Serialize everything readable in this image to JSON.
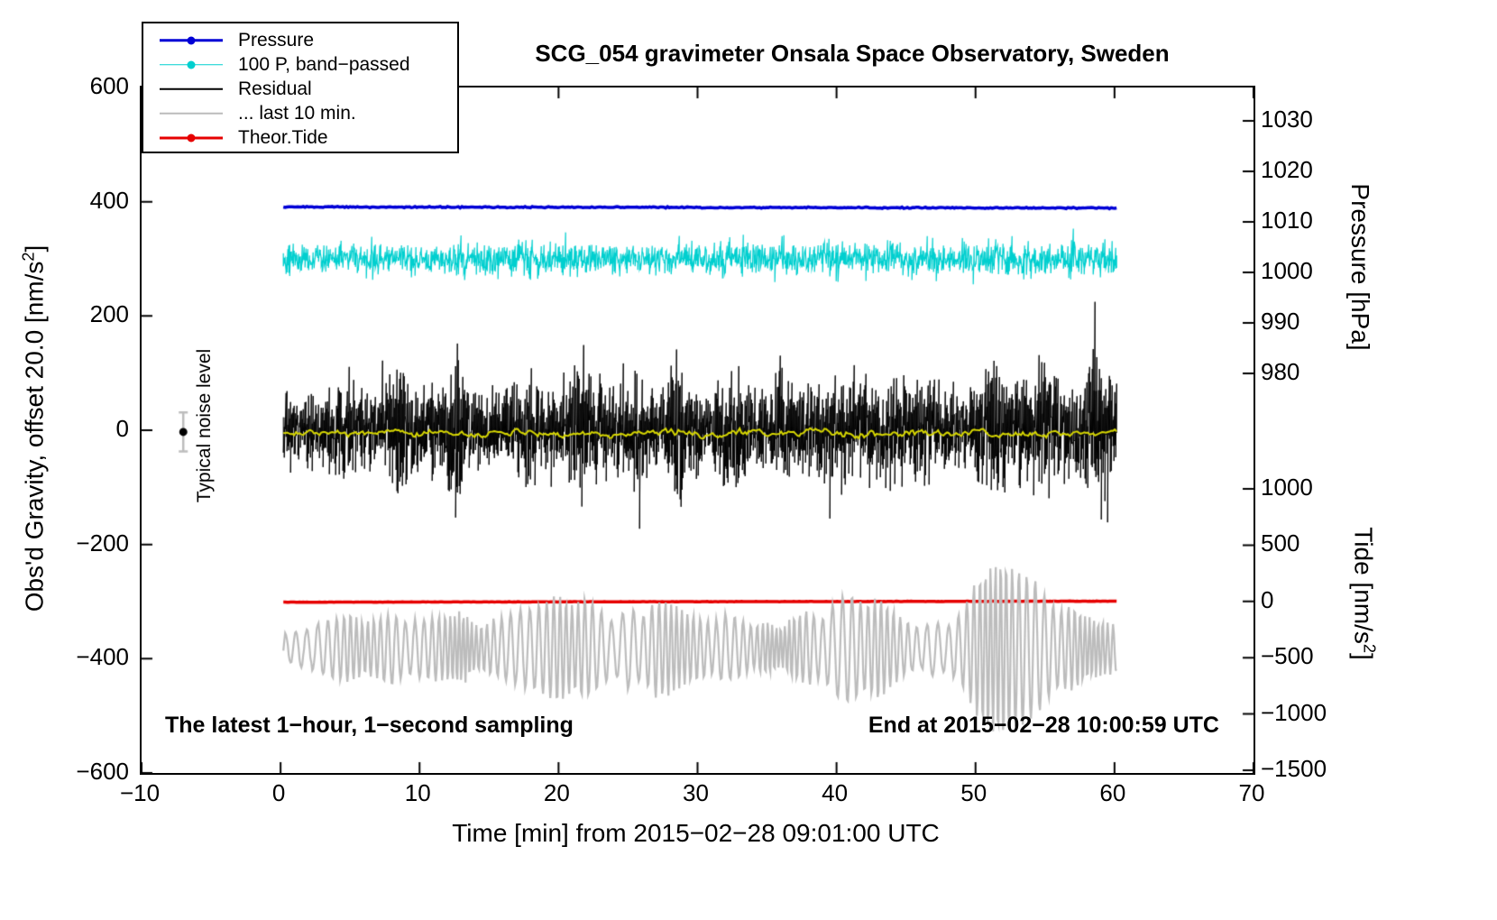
{
  "title": "SCG_054 gravimeter Onsala Space Observatory, Sweden",
  "legend": {
    "items": [
      {
        "label": "Pressure",
        "color": "#0000d6",
        "line_width": 3.5,
        "marker": true
      },
      {
        "label": "100 P, band−passed",
        "color": "#00cfcf",
        "line_width": 1.5,
        "marker": true
      },
      {
        "label": "Residual",
        "color": "#000000",
        "line_width": 2.5,
        "marker": false
      },
      {
        "label": "... last 10 min.",
        "color": "#bcbcbc",
        "line_width": 2.5,
        "marker": false
      },
      {
        "label": "Theor.Tide",
        "color": "#e60000",
        "line_width": 3,
        "marker": true
      }
    ]
  },
  "annotations": {
    "noise_level": "Typical noise level",
    "sampling": "The latest 1−hour, 1−second sampling",
    "end_time": "End at 2015−02−28 10:00:59 UTC"
  },
  "axes": {
    "x": {
      "label": "Time [min] from 2015−02−28 09:01:00 UTC",
      "min": -10,
      "max": 70,
      "ticks": [
        {
          "v": -10,
          "label": "−10"
        },
        {
          "v": 0,
          "label": "0"
        },
        {
          "v": 10,
          "label": "10"
        },
        {
          "v": 20,
          "label": "20"
        },
        {
          "v": 30,
          "label": "30"
        },
        {
          "v": 40,
          "label": "40"
        },
        {
          "v": 50,
          "label": "50"
        },
        {
          "v": 60,
          "label": "60"
        },
        {
          "v": 70,
          "label": "70"
        }
      ]
    },
    "gravity": {
      "label_prefix": "Obs'd Gravity, offset 20.0 [nm/s",
      "label_sup": "2",
      "label_suffix": "]",
      "min": -600,
      "max": 600,
      "ticks": [
        {
          "v": 600,
          "label": "600"
        },
        {
          "v": 400,
          "label": "400"
        },
        {
          "v": 200,
          "label": "200"
        },
        {
          "v": 0,
          "label": "0"
        },
        {
          "v": -200,
          "label": "−200"
        },
        {
          "v": -400,
          "label": "−400"
        },
        {
          "v": -600,
          "label": "−600"
        }
      ]
    },
    "pressure": {
      "label": "Pressure [hPa]",
      "ticks": [
        {
          "v": 1030,
          "label": "1030"
        },
        {
          "v": 1020,
          "label": "1020"
        },
        {
          "v": 1010,
          "label": "1010"
        },
        {
          "v": 1000,
          "label": "1000"
        },
        {
          "v": 990,
          "label": "990"
        },
        {
          "v": 980,
          "label": "980"
        }
      ]
    },
    "tide": {
      "label_prefix": "Tide [nm/s",
      "label_sup": "2",
      "label_suffix": "]",
      "ticks": [
        {
          "v": 1000,
          "label": "1000"
        },
        {
          "v": 500,
          "label": "500"
        },
        {
          "v": 0,
          "label": "0"
        },
        {
          "v": -500,
          "label": "−500"
        },
        {
          "v": -1000,
          "label": "−1000"
        },
        {
          "v": -1500,
          "label": "−1500"
        }
      ]
    }
  },
  "chart_data": {
    "type": "line",
    "title": "SCG_054 gravimeter Onsala Space Observatory, Sweden",
    "x_label": "Time [min] from 2015−02−28 09:01:00 UTC",
    "x_range": [
      -10,
      70
    ],
    "data_t_start": 0.2,
    "data_t_end": 60.2,
    "gravity_range": [
      -600,
      600
    ],
    "pressure_tick_range_hPa": [
      980,
      1030
    ],
    "tide_tick_range": [
      -1500,
      1000
    ],
    "noise_marker": {
      "x_min": -7,
      "gravity": -3,
      "half_range": 34
    },
    "series": [
      {
        "name": "Pressure",
        "axis": "pressure",
        "color": "#0000d6",
        "width": 3.5,
        "mean_hPa": 1012,
        "gravity_baseline": 391,
        "slope_per_min": -0.033,
        "noise": 1.1
      },
      {
        "name": "100 P, band−passed",
        "axis": "gravity",
        "color": "#00cfcf",
        "width": 1.2,
        "gravity_baseline": 300,
        "peak_envelope": [
          [
            0,
            28
          ],
          [
            1,
            42
          ],
          [
            2,
            26
          ],
          [
            3,
            32
          ],
          [
            4,
            30
          ],
          [
            5,
            36
          ],
          [
            6,
            32
          ],
          [
            7,
            46
          ],
          [
            7.6,
            32
          ],
          [
            8,
            27
          ],
          [
            9,
            32
          ],
          [
            10,
            36
          ],
          [
            11,
            30
          ],
          [
            12,
            42
          ],
          [
            13,
            46
          ],
          [
            14,
            32
          ],
          [
            15,
            36
          ],
          [
            16,
            30
          ],
          [
            17,
            34
          ],
          [
            18,
            42
          ],
          [
            19,
            32
          ],
          [
            20,
            40
          ],
          [
            21,
            32
          ],
          [
            22,
            36
          ],
          [
            23,
            30
          ],
          [
            24,
            34
          ],
          [
            25,
            32
          ],
          [
            26,
            30
          ],
          [
            27,
            36
          ],
          [
            28,
            32
          ],
          [
            29,
            42
          ],
          [
            30,
            36
          ],
          [
            31,
            32
          ],
          [
            32,
            40
          ],
          [
            33,
            46
          ],
          [
            34,
            34
          ],
          [
            35,
            32
          ],
          [
            36,
            42
          ],
          [
            37,
            36
          ],
          [
            38,
            32
          ],
          [
            39,
            36
          ],
          [
            40,
            44
          ],
          [
            41,
            32
          ],
          [
            42,
            40
          ],
          [
            43,
            34
          ],
          [
            44,
            42
          ],
          [
            45,
            36
          ],
          [
            46,
            44
          ],
          [
            47,
            40
          ],
          [
            48,
            32
          ],
          [
            49,
            36
          ],
          [
            50,
            42
          ],
          [
            51,
            36
          ],
          [
            52,
            32
          ],
          [
            53,
            40
          ],
          [
            54,
            34
          ],
          [
            55,
            36
          ],
          [
            56,
            32
          ],
          [
            57,
            36
          ],
          [
            58,
            34
          ],
          [
            59,
            40
          ],
          [
            60,
            32
          ]
        ]
      },
      {
        "name": "Residual",
        "axis": "gravity",
        "color": "#000000",
        "width": 1,
        "gravity_baseline": 0,
        "peak_envelope": [
          [
            0,
            75
          ],
          [
            1,
            65
          ],
          [
            2,
            80
          ],
          [
            3,
            70
          ],
          [
            4,
            85
          ],
          [
            4.8,
            125
          ],
          [
            5.4,
            95
          ],
          [
            6,
            75
          ],
          [
            7,
            70
          ],
          [
            8,
            130
          ],
          [
            8.6,
            165
          ],
          [
            9.4,
            105
          ],
          [
            10,
            75
          ],
          [
            11,
            80
          ],
          [
            12,
            145
          ],
          [
            12.8,
            165
          ],
          [
            13.5,
            105
          ],
          [
            14,
            78
          ],
          [
            15,
            70
          ],
          [
            16,
            75
          ],
          [
            17,
            95
          ],
          [
            18,
            115
          ],
          [
            19,
            85
          ],
          [
            20,
            95
          ],
          [
            21,
            125
          ],
          [
            21.6,
            145
          ],
          [
            22.2,
            105
          ],
          [
            23,
            95
          ],
          [
            24,
            85
          ],
          [
            25,
            115
          ],
          [
            26,
            95
          ],
          [
            27,
            85
          ],
          [
            28,
            105
          ],
          [
            28.8,
            195
          ],
          [
            29.3,
            125
          ],
          [
            30,
            85
          ],
          [
            31,
            75
          ],
          [
            32,
            135
          ],
          [
            32.6,
            155
          ],
          [
            33.2,
            105
          ],
          [
            34,
            85
          ],
          [
            35,
            95
          ],
          [
            36,
            115
          ],
          [
            37,
            85
          ],
          [
            38,
            75
          ],
          [
            39,
            95
          ],
          [
            40,
            105
          ],
          [
            41,
            135
          ],
          [
            42,
            95
          ],
          [
            43,
            105
          ],
          [
            44,
            125
          ],
          [
            45,
            85
          ],
          [
            46,
            105
          ],
          [
            47,
            115
          ],
          [
            48,
            85
          ],
          [
            49,
            75
          ],
          [
            50,
            95
          ],
          [
            51,
            135
          ],
          [
            52,
            105
          ],
          [
            53,
            95
          ],
          [
            54,
            115
          ],
          [
            55,
            125
          ],
          [
            56,
            95
          ],
          [
            57,
            85
          ],
          [
            58,
            125
          ],
          [
            58.8,
            175
          ],
          [
            59.4,
            155
          ],
          [
            60,
            115
          ]
        ]
      },
      {
        "name": "Residual (smoothed)",
        "axis": "gravity",
        "color": "#d6d600",
        "width": 2,
        "gravity_baseline": -5,
        "noise": 5
      },
      {
        "name": "Theor.Tide",
        "axis": "tide",
        "color": "#e60000",
        "width": 3.5,
        "tide_value": 0,
        "gravity_baseline": -301,
        "slope_per_min": 0.03,
        "noise": 0.3
      },
      {
        "name": "... last 10 min.",
        "axis": "tide",
        "color": "#bcbcbc",
        "width": 2.2,
        "gravity_baseline": -382,
        "carrier_period_min": 0.55,
        "amp_envelope": [
          [
            0,
            22
          ],
          [
            1,
            30
          ],
          [
            2,
            35
          ],
          [
            3,
            45
          ],
          [
            4,
            55
          ],
          [
            5,
            60
          ],
          [
            6,
            45
          ],
          [
            7,
            55
          ],
          [
            8,
            65
          ],
          [
            9,
            45
          ],
          [
            10,
            50
          ],
          [
            11,
            55
          ],
          [
            12,
            60
          ],
          [
            13,
            62
          ],
          [
            14,
            40
          ],
          [
            15,
            45
          ],
          [
            16,
            55
          ],
          [
            17,
            65
          ],
          [
            18,
            70
          ],
          [
            19,
            80
          ],
          [
            20,
            95
          ],
          [
            21,
            75
          ],
          [
            22,
            90
          ],
          [
            23,
            65
          ],
          [
            24,
            45
          ],
          [
            25,
            75
          ],
          [
            26,
            55
          ],
          [
            27,
            85
          ],
          [
            28,
            80
          ],
          [
            29,
            65
          ],
          [
            30,
            55
          ],
          [
            31,
            45
          ],
          [
            32,
            60
          ],
          [
            33,
            50
          ],
          [
            34,
            38
          ],
          [
            35,
            48
          ],
          [
            36,
            35
          ],
          [
            37,
            55
          ],
          [
            38,
            65
          ],
          [
            39,
            50
          ],
          [
            40,
            85
          ],
          [
            41,
            95
          ],
          [
            42,
            75
          ],
          [
            43,
            90
          ],
          [
            44,
            65
          ],
          [
            45,
            45
          ],
          [
            46,
            35
          ],
          [
            47,
            50
          ],
          [
            48,
            40
          ],
          [
            49,
            65
          ],
          [
            50,
            115
          ],
          [
            51,
            145
          ],
          [
            52,
            155
          ],
          [
            53,
            135
          ],
          [
            54,
            125
          ],
          [
            55,
            95
          ],
          [
            56,
            65
          ],
          [
            57,
            75
          ],
          [
            58,
            55
          ],
          [
            59,
            48
          ],
          [
            60,
            42
          ]
        ]
      }
    ]
  }
}
